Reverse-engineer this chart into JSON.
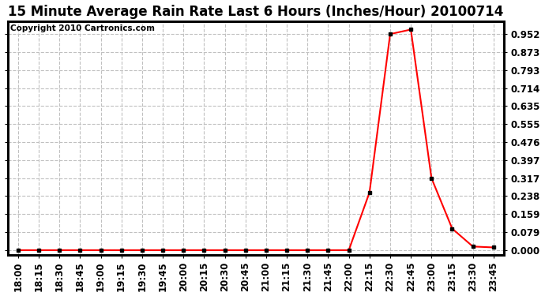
{
  "title": "15 Minute Average Rain Rate Last 6 Hours (Inches/Hour) 20100714",
  "copyright": "Copyright 2010 Cartronics.com",
  "x_labels": [
    "18:00",
    "18:15",
    "18:30",
    "18:45",
    "19:00",
    "19:15",
    "19:30",
    "19:45",
    "20:00",
    "20:15",
    "20:30",
    "20:45",
    "21:00",
    "21:15",
    "21:30",
    "21:45",
    "22:00",
    "22:15",
    "22:30",
    "22:45",
    "23:00",
    "23:15",
    "23:30",
    "23:45"
  ],
  "y_values": [
    0.0,
    0.0,
    0.0,
    0.0,
    0.0,
    0.0,
    0.0,
    0.0,
    0.0,
    0.0,
    0.0,
    0.0,
    0.0,
    0.0,
    0.0,
    0.0,
    0.0,
    0.254,
    0.952,
    0.972,
    0.317,
    0.095,
    0.016,
    0.012
  ],
  "y_ticks": [
    0.0,
    0.079,
    0.159,
    0.238,
    0.317,
    0.397,
    0.476,
    0.555,
    0.635,
    0.714,
    0.793,
    0.873,
    0.952
  ],
  "ylim": [
    -0.02,
    1.01
  ],
  "line_color": "#ff0000",
  "marker_color": "#000000",
  "bg_color": "#ffffff",
  "plot_bg_color": "#ffffff",
  "grid_color": "#c0c0c0",
  "title_fontsize": 12,
  "copyright_fontsize": 7.5,
  "tick_fontsize": 8.5
}
